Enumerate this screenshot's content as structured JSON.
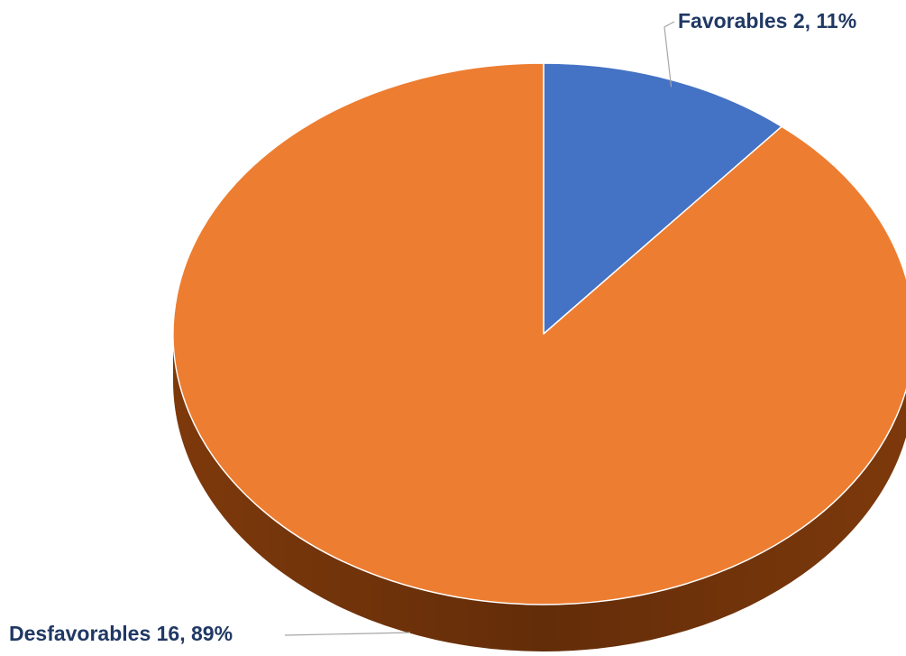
{
  "chart_data": {
    "type": "pie",
    "style": "3d-tilted",
    "slices": [
      {
        "name": "Favorables",
        "value": 2,
        "percent": "11%",
        "label": "Favorables  2, 11%",
        "color": "#4472C4",
        "side_color": "#2F528F"
      },
      {
        "name": "Desfavorables",
        "value": 16,
        "percent": "89%",
        "label": "Desfavorables 16, 89%",
        "color": "#ED7D31",
        "side_color": "#843C0C"
      }
    ],
    "title": "",
    "legend": "none"
  }
}
